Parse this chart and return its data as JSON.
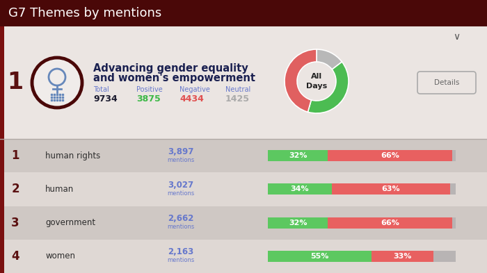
{
  "title": "G7 Themes by mentions",
  "title_bg": "#4a0808",
  "title_color": "#ffffff",
  "header_bg": "#ebe5e2",
  "card_title_line1": "Advancing gender equality",
  "card_title_line2": "and women's empowerment",
  "card_total_label": "Total",
  "card_positive_label": "Positive",
  "card_negative_label": "Negative",
  "card_neutral_label": "Neutral",
  "card_total": "9734",
  "card_positive": "3875",
  "card_negative": "4434",
  "card_neutral": "1425",
  "card_total_color": "#1a1a2e",
  "card_positive_color": "#3cb846",
  "card_negative_color": "#e05050",
  "card_neutral_color": "#aaaaaa",
  "card_label_color": "#6678cc",
  "donut_positive_pct": 39.8,
  "donut_negative_pct": 45.6,
  "donut_neutral_pct": 14.6,
  "donut_positive_color": "#4cbc52",
  "donut_negative_color": "#e06060",
  "donut_neutral_color": "#b8b8b8",
  "donut_label": "All\nDays",
  "rows": [
    {
      "rank": "1",
      "label": "human rights",
      "mentions": "3,897",
      "positive_pct": 32,
      "negative_pct": 66,
      "neutral_pct": 2,
      "row_bg": "#cfc8c4"
    },
    {
      "rank": "2",
      "label": "human",
      "mentions": "3,027",
      "positive_pct": 34,
      "negative_pct": 63,
      "neutral_pct": 3,
      "row_bg": "#dfd8d4"
    },
    {
      "rank": "3",
      "label": "government",
      "mentions": "2,662",
      "positive_pct": 32,
      "negative_pct": 66,
      "neutral_pct": 2,
      "row_bg": "#cfc8c4"
    },
    {
      "rank": "4",
      "label": "women",
      "mentions": "2,163",
      "positive_pct": 55,
      "negative_pct": 33,
      "neutral_pct": 12,
      "row_bg": "#dfd8d4"
    }
  ],
  "bar_positive_color": "#5cc860",
  "bar_negative_color": "#e86060",
  "bar_neutral_color": "#b8b4b4",
  "mention_color": "#6678cc",
  "rank_color": "#5a1010",
  "label_color": "#2d2d2d",
  "separator_color": "#7a1010",
  "chevron_color": "#555555",
  "details_border": "#aaaaaa",
  "details_text": "#666666"
}
